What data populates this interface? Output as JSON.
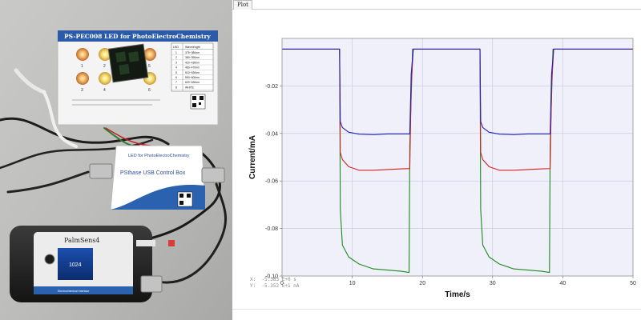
{
  "photo": {
    "led_board_title": "PS-PEC008 LED for PhotoElectroChemistry",
    "led_table_header": [
      "LED",
      "Wavelength"
    ],
    "led_rows": [
      [
        "1",
        "375~380nm"
      ],
      [
        "2",
        "380~390nm"
      ],
      [
        "3",
        "420~430nm"
      ],
      [
        "4",
        "460~470nm"
      ],
      [
        "5",
        "510~530nm"
      ],
      [
        "6",
        "590~600nm"
      ],
      [
        "7",
        "620~630nm"
      ],
      [
        "8",
        "WHITE"
      ]
    ],
    "led_numbers": [
      "1",
      "2",
      "3",
      "4",
      "5",
      "6"
    ],
    "control_box_title": "LED for PhotoElectroChemistry",
    "control_box_name": "PSthase USB Control Box",
    "device_name": "PalmSens4",
    "device_subtitle": "Electrochemical Interface",
    "device_screen_text": "1024"
  },
  "tabs": [
    {
      "label": "Plot"
    }
  ],
  "readout": {
    "x_line": "X:  -5.383 E+0 s",
    "y_line": "Y:  -5.352 E+1 nA"
  },
  "chart_data": {
    "type": "line",
    "title": "",
    "xlabel": "Time/s",
    "ylabel": "Current/mA",
    "xlim": [
      0,
      50
    ],
    "ylim": [
      -0.1,
      0.0
    ],
    "xticks": [
      0,
      10,
      20,
      30,
      40,
      50
    ],
    "yticks": [
      -0.02,
      -0.04,
      -0.06,
      -0.08,
      -0.1
    ],
    "ytick_labels": [
      "-0.02",
      "-0.04",
      "-0.06",
      "-0.08",
      "-0.10"
    ],
    "grid": true,
    "background": "#f0f0fb",
    "series": [
      {
        "color": "#1a8a1a",
        "x": [
          0,
          8.2,
          8.3,
          8.6,
          9.5,
          11,
          13,
          15,
          17,
          18.1,
          18.2,
          18.6,
          28.2,
          28.3,
          28.6,
          29.5,
          31,
          33,
          35,
          37,
          38.1,
          38.2,
          38.6,
          50
        ],
        "y": [
          -0.0045,
          -0.0045,
          -0.072,
          -0.087,
          -0.092,
          -0.095,
          -0.097,
          -0.0975,
          -0.098,
          -0.0985,
          -0.045,
          -0.0045,
          -0.0045,
          -0.072,
          -0.087,
          -0.092,
          -0.095,
          -0.097,
          -0.0975,
          -0.098,
          -0.0985,
          -0.045,
          -0.0045,
          -0.0045
        ]
      },
      {
        "color": "#d42020",
        "x": [
          0,
          8.2,
          8.3,
          8.6,
          9.5,
          11,
          13,
          15,
          17,
          18.2,
          18.4,
          18.7,
          28.2,
          28.3,
          28.6,
          29.5,
          31,
          33,
          35,
          37,
          38.2,
          38.4,
          38.7,
          50
        ],
        "y": [
          -0.0045,
          -0.0045,
          -0.048,
          -0.051,
          -0.054,
          -0.0555,
          -0.0555,
          -0.0552,
          -0.0549,
          -0.0548,
          -0.02,
          -0.0045,
          -0.0045,
          -0.048,
          -0.051,
          -0.054,
          -0.0555,
          -0.0555,
          -0.0552,
          -0.0549,
          -0.0548,
          -0.02,
          -0.0045,
          -0.0045
        ]
      },
      {
        "color": "#2020b8",
        "x": [
          0,
          8.2,
          8.3,
          8.6,
          9.5,
          11,
          13,
          15,
          17,
          18.2,
          18.4,
          18.7,
          28.2,
          28.3,
          28.6,
          29.5,
          31,
          33,
          35,
          37,
          38.2,
          38.4,
          38.7,
          50
        ],
        "y": [
          -0.0045,
          -0.0045,
          -0.035,
          -0.0375,
          -0.0395,
          -0.0403,
          -0.0405,
          -0.0402,
          -0.0402,
          -0.0402,
          -0.015,
          -0.0045,
          -0.0045,
          -0.035,
          -0.0375,
          -0.0395,
          -0.0403,
          -0.0405,
          -0.0402,
          -0.0402,
          -0.0402,
          -0.015,
          -0.0045,
          -0.0045
        ]
      }
    ]
  }
}
